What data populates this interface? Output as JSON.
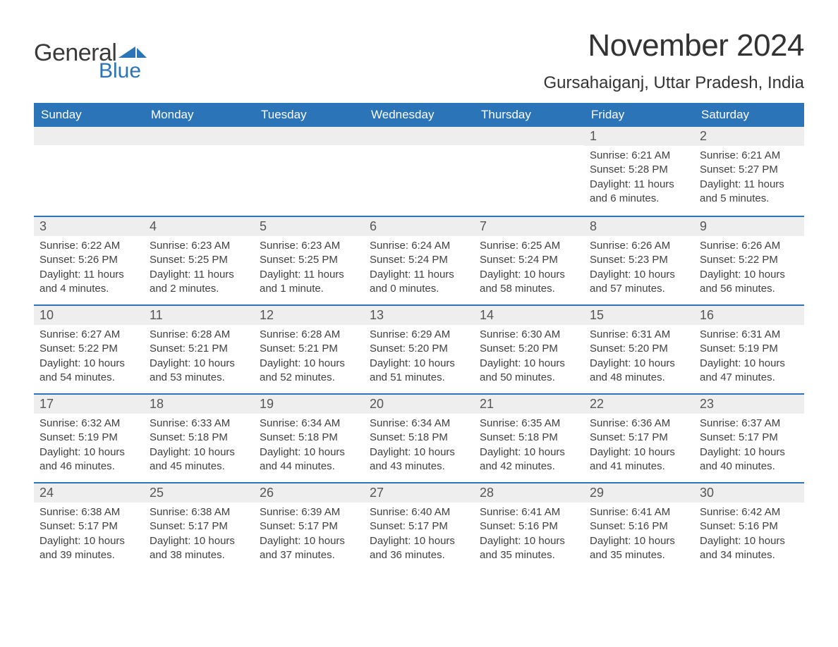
{
  "brand": {
    "word1": "General",
    "word2": "Blue",
    "accent_color": "#2b74b8"
  },
  "title": "November 2024",
  "location": "Gursahaiganj, Uttar Pradesh, India",
  "colors": {
    "header_bg": "#2b74b8",
    "header_text": "#ffffff",
    "daynum_bg": "#eeeeee",
    "text": "#3a3a3a",
    "border": "#2b74b8",
    "page_bg": "#ffffff"
  },
  "weekdays": [
    "Sunday",
    "Monday",
    "Tuesday",
    "Wednesday",
    "Thursday",
    "Friday",
    "Saturday"
  ],
  "weeks": [
    [
      {
        "empty": true
      },
      {
        "empty": true
      },
      {
        "empty": true
      },
      {
        "empty": true
      },
      {
        "empty": true
      },
      {
        "day": "1",
        "sunrise": "Sunrise: 6:21 AM",
        "sunset": "Sunset: 5:28 PM",
        "daylight1": "Daylight: 11 hours",
        "daylight2": "and 6 minutes."
      },
      {
        "day": "2",
        "sunrise": "Sunrise: 6:21 AM",
        "sunset": "Sunset: 5:27 PM",
        "daylight1": "Daylight: 11 hours",
        "daylight2": "and 5 minutes."
      }
    ],
    [
      {
        "day": "3",
        "sunrise": "Sunrise: 6:22 AM",
        "sunset": "Sunset: 5:26 PM",
        "daylight1": "Daylight: 11 hours",
        "daylight2": "and 4 minutes."
      },
      {
        "day": "4",
        "sunrise": "Sunrise: 6:23 AM",
        "sunset": "Sunset: 5:25 PM",
        "daylight1": "Daylight: 11 hours",
        "daylight2": "and 2 minutes."
      },
      {
        "day": "5",
        "sunrise": "Sunrise: 6:23 AM",
        "sunset": "Sunset: 5:25 PM",
        "daylight1": "Daylight: 11 hours",
        "daylight2": "and 1 minute."
      },
      {
        "day": "6",
        "sunrise": "Sunrise: 6:24 AM",
        "sunset": "Sunset: 5:24 PM",
        "daylight1": "Daylight: 11 hours",
        "daylight2": "and 0 minutes."
      },
      {
        "day": "7",
        "sunrise": "Sunrise: 6:25 AM",
        "sunset": "Sunset: 5:24 PM",
        "daylight1": "Daylight: 10 hours",
        "daylight2": "and 58 minutes."
      },
      {
        "day": "8",
        "sunrise": "Sunrise: 6:26 AM",
        "sunset": "Sunset: 5:23 PM",
        "daylight1": "Daylight: 10 hours",
        "daylight2": "and 57 minutes."
      },
      {
        "day": "9",
        "sunrise": "Sunrise: 6:26 AM",
        "sunset": "Sunset: 5:22 PM",
        "daylight1": "Daylight: 10 hours",
        "daylight2": "and 56 minutes."
      }
    ],
    [
      {
        "day": "10",
        "sunrise": "Sunrise: 6:27 AM",
        "sunset": "Sunset: 5:22 PM",
        "daylight1": "Daylight: 10 hours",
        "daylight2": "and 54 minutes."
      },
      {
        "day": "11",
        "sunrise": "Sunrise: 6:28 AM",
        "sunset": "Sunset: 5:21 PM",
        "daylight1": "Daylight: 10 hours",
        "daylight2": "and 53 minutes."
      },
      {
        "day": "12",
        "sunrise": "Sunrise: 6:28 AM",
        "sunset": "Sunset: 5:21 PM",
        "daylight1": "Daylight: 10 hours",
        "daylight2": "and 52 minutes."
      },
      {
        "day": "13",
        "sunrise": "Sunrise: 6:29 AM",
        "sunset": "Sunset: 5:20 PM",
        "daylight1": "Daylight: 10 hours",
        "daylight2": "and 51 minutes."
      },
      {
        "day": "14",
        "sunrise": "Sunrise: 6:30 AM",
        "sunset": "Sunset: 5:20 PM",
        "daylight1": "Daylight: 10 hours",
        "daylight2": "and 50 minutes."
      },
      {
        "day": "15",
        "sunrise": "Sunrise: 6:31 AM",
        "sunset": "Sunset: 5:20 PM",
        "daylight1": "Daylight: 10 hours",
        "daylight2": "and 48 minutes."
      },
      {
        "day": "16",
        "sunrise": "Sunrise: 6:31 AM",
        "sunset": "Sunset: 5:19 PM",
        "daylight1": "Daylight: 10 hours",
        "daylight2": "and 47 minutes."
      }
    ],
    [
      {
        "day": "17",
        "sunrise": "Sunrise: 6:32 AM",
        "sunset": "Sunset: 5:19 PM",
        "daylight1": "Daylight: 10 hours",
        "daylight2": "and 46 minutes."
      },
      {
        "day": "18",
        "sunrise": "Sunrise: 6:33 AM",
        "sunset": "Sunset: 5:18 PM",
        "daylight1": "Daylight: 10 hours",
        "daylight2": "and 45 minutes."
      },
      {
        "day": "19",
        "sunrise": "Sunrise: 6:34 AM",
        "sunset": "Sunset: 5:18 PM",
        "daylight1": "Daylight: 10 hours",
        "daylight2": "and 44 minutes."
      },
      {
        "day": "20",
        "sunrise": "Sunrise: 6:34 AM",
        "sunset": "Sunset: 5:18 PM",
        "daylight1": "Daylight: 10 hours",
        "daylight2": "and 43 minutes."
      },
      {
        "day": "21",
        "sunrise": "Sunrise: 6:35 AM",
        "sunset": "Sunset: 5:18 PM",
        "daylight1": "Daylight: 10 hours",
        "daylight2": "and 42 minutes."
      },
      {
        "day": "22",
        "sunrise": "Sunrise: 6:36 AM",
        "sunset": "Sunset: 5:17 PM",
        "daylight1": "Daylight: 10 hours",
        "daylight2": "and 41 minutes."
      },
      {
        "day": "23",
        "sunrise": "Sunrise: 6:37 AM",
        "sunset": "Sunset: 5:17 PM",
        "daylight1": "Daylight: 10 hours",
        "daylight2": "and 40 minutes."
      }
    ],
    [
      {
        "day": "24",
        "sunrise": "Sunrise: 6:38 AM",
        "sunset": "Sunset: 5:17 PM",
        "daylight1": "Daylight: 10 hours",
        "daylight2": "and 39 minutes."
      },
      {
        "day": "25",
        "sunrise": "Sunrise: 6:38 AM",
        "sunset": "Sunset: 5:17 PM",
        "daylight1": "Daylight: 10 hours",
        "daylight2": "and 38 minutes."
      },
      {
        "day": "26",
        "sunrise": "Sunrise: 6:39 AM",
        "sunset": "Sunset: 5:17 PM",
        "daylight1": "Daylight: 10 hours",
        "daylight2": "and 37 minutes."
      },
      {
        "day": "27",
        "sunrise": "Sunrise: 6:40 AM",
        "sunset": "Sunset: 5:17 PM",
        "daylight1": "Daylight: 10 hours",
        "daylight2": "and 36 minutes."
      },
      {
        "day": "28",
        "sunrise": "Sunrise: 6:41 AM",
        "sunset": "Sunset: 5:16 PM",
        "daylight1": "Daylight: 10 hours",
        "daylight2": "and 35 minutes."
      },
      {
        "day": "29",
        "sunrise": "Sunrise: 6:41 AM",
        "sunset": "Sunset: 5:16 PM",
        "daylight1": "Daylight: 10 hours",
        "daylight2": "and 35 minutes."
      },
      {
        "day": "30",
        "sunrise": "Sunrise: 6:42 AM",
        "sunset": "Sunset: 5:16 PM",
        "daylight1": "Daylight: 10 hours",
        "daylight2": "and 34 minutes."
      }
    ]
  ]
}
